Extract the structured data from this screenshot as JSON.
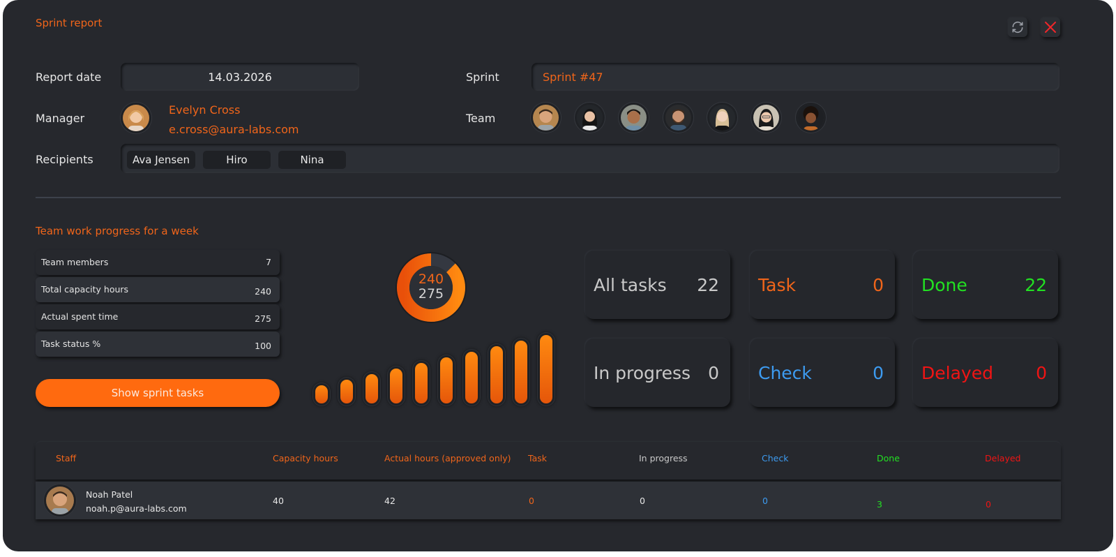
{
  "window": {
    "title": "Sprint report",
    "refresh_icon": "refresh-icon",
    "close_icon": "close-icon"
  },
  "form": {
    "report_date_label": "Report date",
    "report_date_value": "14.03.2026",
    "sprint_label": "Sprint",
    "sprint_value": "Sprint #47",
    "manager_label": "Manager",
    "manager": {
      "name": "Evelyn Cross",
      "email": "e.cross@aura-labs.com"
    },
    "team_label": "Team",
    "team": [
      {
        "avatar": "avatar-man-1"
      },
      {
        "avatar": "avatar-woman-1"
      },
      {
        "avatar": "avatar-man-2"
      },
      {
        "avatar": "avatar-man-3"
      },
      {
        "avatar": "avatar-woman-2"
      },
      {
        "avatar": "avatar-woman-3"
      },
      {
        "avatar": "avatar-woman-4"
      }
    ],
    "recipients_label": "Recipients",
    "recipients": [
      "Ava Jensen",
      "Hiro",
      "Nina"
    ]
  },
  "progress": {
    "section_title": "Team work progress for a week",
    "stats": [
      {
        "label": "Team members",
        "value": "7"
      },
      {
        "label": "Total capacity hours",
        "value": "240"
      },
      {
        "label": "Actual spent time",
        "value": "275"
      },
      {
        "label": "Task status %",
        "value": "100"
      }
    ],
    "show_tasks_button": "Show sprint tasks",
    "donut": {
      "top_value": "240",
      "bottom_value": "275",
      "fraction": 0.873
    },
    "bars": [
      12,
      20,
      28,
      36,
      44,
      52,
      60,
      68,
      76,
      84
    ],
    "cards": [
      {
        "label": "All tasks",
        "count": "22",
        "color": "#c9c9c9"
      },
      {
        "label": "Task",
        "count": "0",
        "color": "#f0651a"
      },
      {
        "label": "Done",
        "count": "22",
        "color": "#22e022"
      },
      {
        "label": "In progress",
        "count": "0",
        "color": "#c9c9c9"
      },
      {
        "label": "Check",
        "count": "0",
        "color": "#3d9bf0"
      },
      {
        "label": "Delayed",
        "count": "0",
        "color": "#f01414"
      }
    ]
  },
  "table": {
    "columns": [
      {
        "label": "Staff",
        "color": "#f0651a"
      },
      {
        "label": "Capacity hours",
        "color": "#f0651a"
      },
      {
        "label": "Actual hours (approved only)",
        "color": "#f0651a"
      },
      {
        "label": "Task",
        "color": "#f0651a"
      },
      {
        "label": "In progress",
        "color": "#c9c9c9"
      },
      {
        "label": "Check",
        "color": "#3d9bf0"
      },
      {
        "label": "Done",
        "color": "#22e022"
      },
      {
        "label": "Delayed",
        "color": "#f01414"
      }
    ],
    "rows": [
      {
        "name": "Noah Patel",
        "email": "noah.p@aura-labs.com",
        "capacity": "40",
        "actual": "42",
        "task": "0",
        "in_progress": "0",
        "check": "0",
        "done": "3",
        "delayed": "0"
      }
    ]
  },
  "colors": {
    "accent": "#f0651a",
    "button": "#ff6a0f",
    "background": "#26282d",
    "done": "#22e022",
    "check": "#3d9bf0",
    "delayed": "#f01414"
  }
}
